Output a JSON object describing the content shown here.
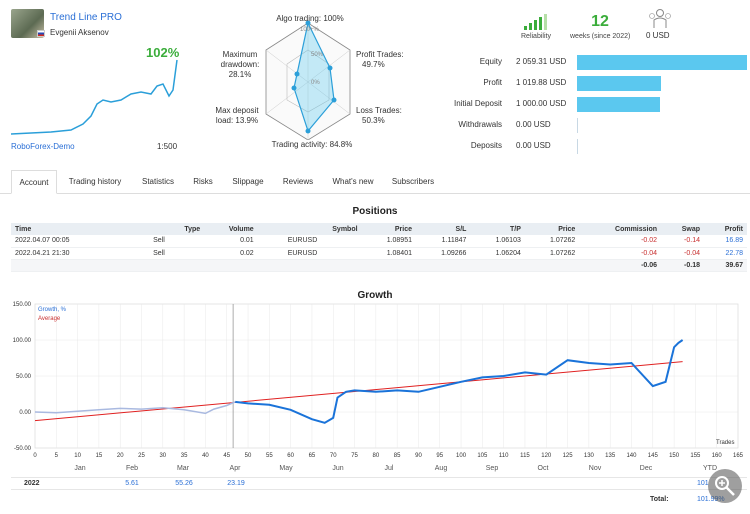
{
  "header": {
    "signal_name": "Trend Line PRO",
    "author": "Evgenii Aksenov",
    "growth_pct": "102%",
    "broker": "RoboForex-Demo",
    "leverage": "1:500"
  },
  "radar": {
    "algo_trading": "Algo trading: 100%",
    "center_top": "100+%",
    "pct_50": "50%",
    "pct_0": "0%",
    "profit_trades": [
      "Profit Trades:",
      "49.7%"
    ],
    "loss_trades": [
      "Loss Trades:",
      "50.3%"
    ],
    "trading_activity": "Trading activity: 84.8%",
    "max_deposit_load": [
      "Max deposit",
      "load: 13.9%"
    ],
    "max_drawdown": [
      "Maximum",
      "drawdown:",
      "28.1%"
    ]
  },
  "stats": {
    "reliability_label": "Reliability",
    "weeks_value": "12",
    "weeks_label": "weeks (since 2022)",
    "subscribers_value": "0 USD"
  },
  "balances": [
    {
      "label": "Equity",
      "value": "2 059.31 USD",
      "fraction": 1.0
    },
    {
      "label": "Profit",
      "value": "1 019.88 USD",
      "fraction": 0.495
    },
    {
      "label": "Initial Deposit",
      "value": "1 000.00 USD",
      "fraction": 0.486
    },
    {
      "label": "Withdrawals",
      "value": "0.00 USD",
      "fraction": 0
    },
    {
      "label": "Deposits",
      "value": "0.00 USD",
      "fraction": 0
    }
  ],
  "colors": {
    "bar": "#5bc8ef",
    "accent": "#2a6fd6",
    "green": "#3bad3b"
  },
  "tabs": [
    "Account",
    "Trading history",
    "Statistics",
    "Risks",
    "Slippage",
    "Reviews",
    "What's new",
    "Subscribers"
  ],
  "positions": {
    "title": "Positions",
    "columns": [
      "Time",
      "Type",
      "Volume",
      "Symbol",
      "Price",
      "S/L",
      "T/P",
      "Price",
      "Commission",
      "Swap",
      "Profit"
    ],
    "rows": [
      [
        "2022.04.07 00:05",
        "Sell",
        "0.01",
        "EURUSD",
        "1.08951",
        "1.11847",
        "1.06103",
        "1.07262",
        "-0.02",
        "-0.14",
        "16.89"
      ],
      [
        "2022.04.21 21:30",
        "Sell",
        "0.02",
        "EURUSD",
        "1.08401",
        "1.09266",
        "1.06204",
        "1.07262",
        "-0.04",
        "-0.04",
        "22.78"
      ]
    ],
    "totals": {
      "commission": "-0.06",
      "swap": "-0.18",
      "profit": "39.67"
    }
  },
  "growth": {
    "title": "Growth",
    "legend_growth": "Growth, %",
    "legend_average": "Average",
    "x_axis_label": "Trades",
    "months": [
      "Jan",
      "Feb",
      "Mar",
      "Apr",
      "May",
      "Jun",
      "Jul",
      "Aug",
      "Sep",
      "Oct",
      "Nov",
      "Dec"
    ],
    "ytd_label": "YTD",
    "year": "2022",
    "month_values": {
      "Feb": "5.61",
      "Mar": "55.26",
      "Apr": "23.19"
    },
    "ytd_value": "101",
    "total_label": "Total:",
    "total_value": "101.99%"
  },
  "chart_data": {
    "type": "line",
    "xlabel": "Trades",
    "xlim": [
      0,
      165
    ],
    "ylim": [
      -50,
      150
    ],
    "x_ticks": [
      0,
      5,
      10,
      15,
      20,
      25,
      30,
      35,
      40,
      45,
      50,
      55,
      60,
      65,
      70,
      75,
      80,
      85,
      90,
      95,
      100,
      105,
      110,
      115,
      120,
      125,
      130,
      135,
      140,
      145,
      150,
      155,
      160,
      165
    ],
    "y_ticks": [
      "-50.00",
      "0.00",
      "50.00",
      "100.00",
      "150.00"
    ],
    "series": [
      {
        "name": "Growth, %",
        "x": [
          0,
          5,
          10,
          15,
          20,
          25,
          30,
          35,
          40,
          42,
          45,
          47,
          50,
          55,
          60,
          65,
          68,
          70,
          71,
          73,
          75,
          80,
          85,
          90,
          95,
          100,
          105,
          110,
          115,
          120,
          125,
          130,
          135,
          140,
          145,
          148,
          150,
          151,
          152
        ],
        "y": [
          0,
          -1,
          1,
          3,
          5,
          4,
          6,
          3,
          -2,
          4,
          9,
          14,
          12,
          10,
          3,
          -10,
          -15,
          -8,
          20,
          28,
          30,
          28,
          30,
          28,
          35,
          42,
          48,
          50,
          55,
          52,
          72,
          68,
          66,
          68,
          36,
          42,
          90,
          96,
          100
        ]
      },
      {
        "name": "Average",
        "x": [
          0,
          152
        ],
        "y": [
          -12,
          70
        ]
      }
    ]
  }
}
